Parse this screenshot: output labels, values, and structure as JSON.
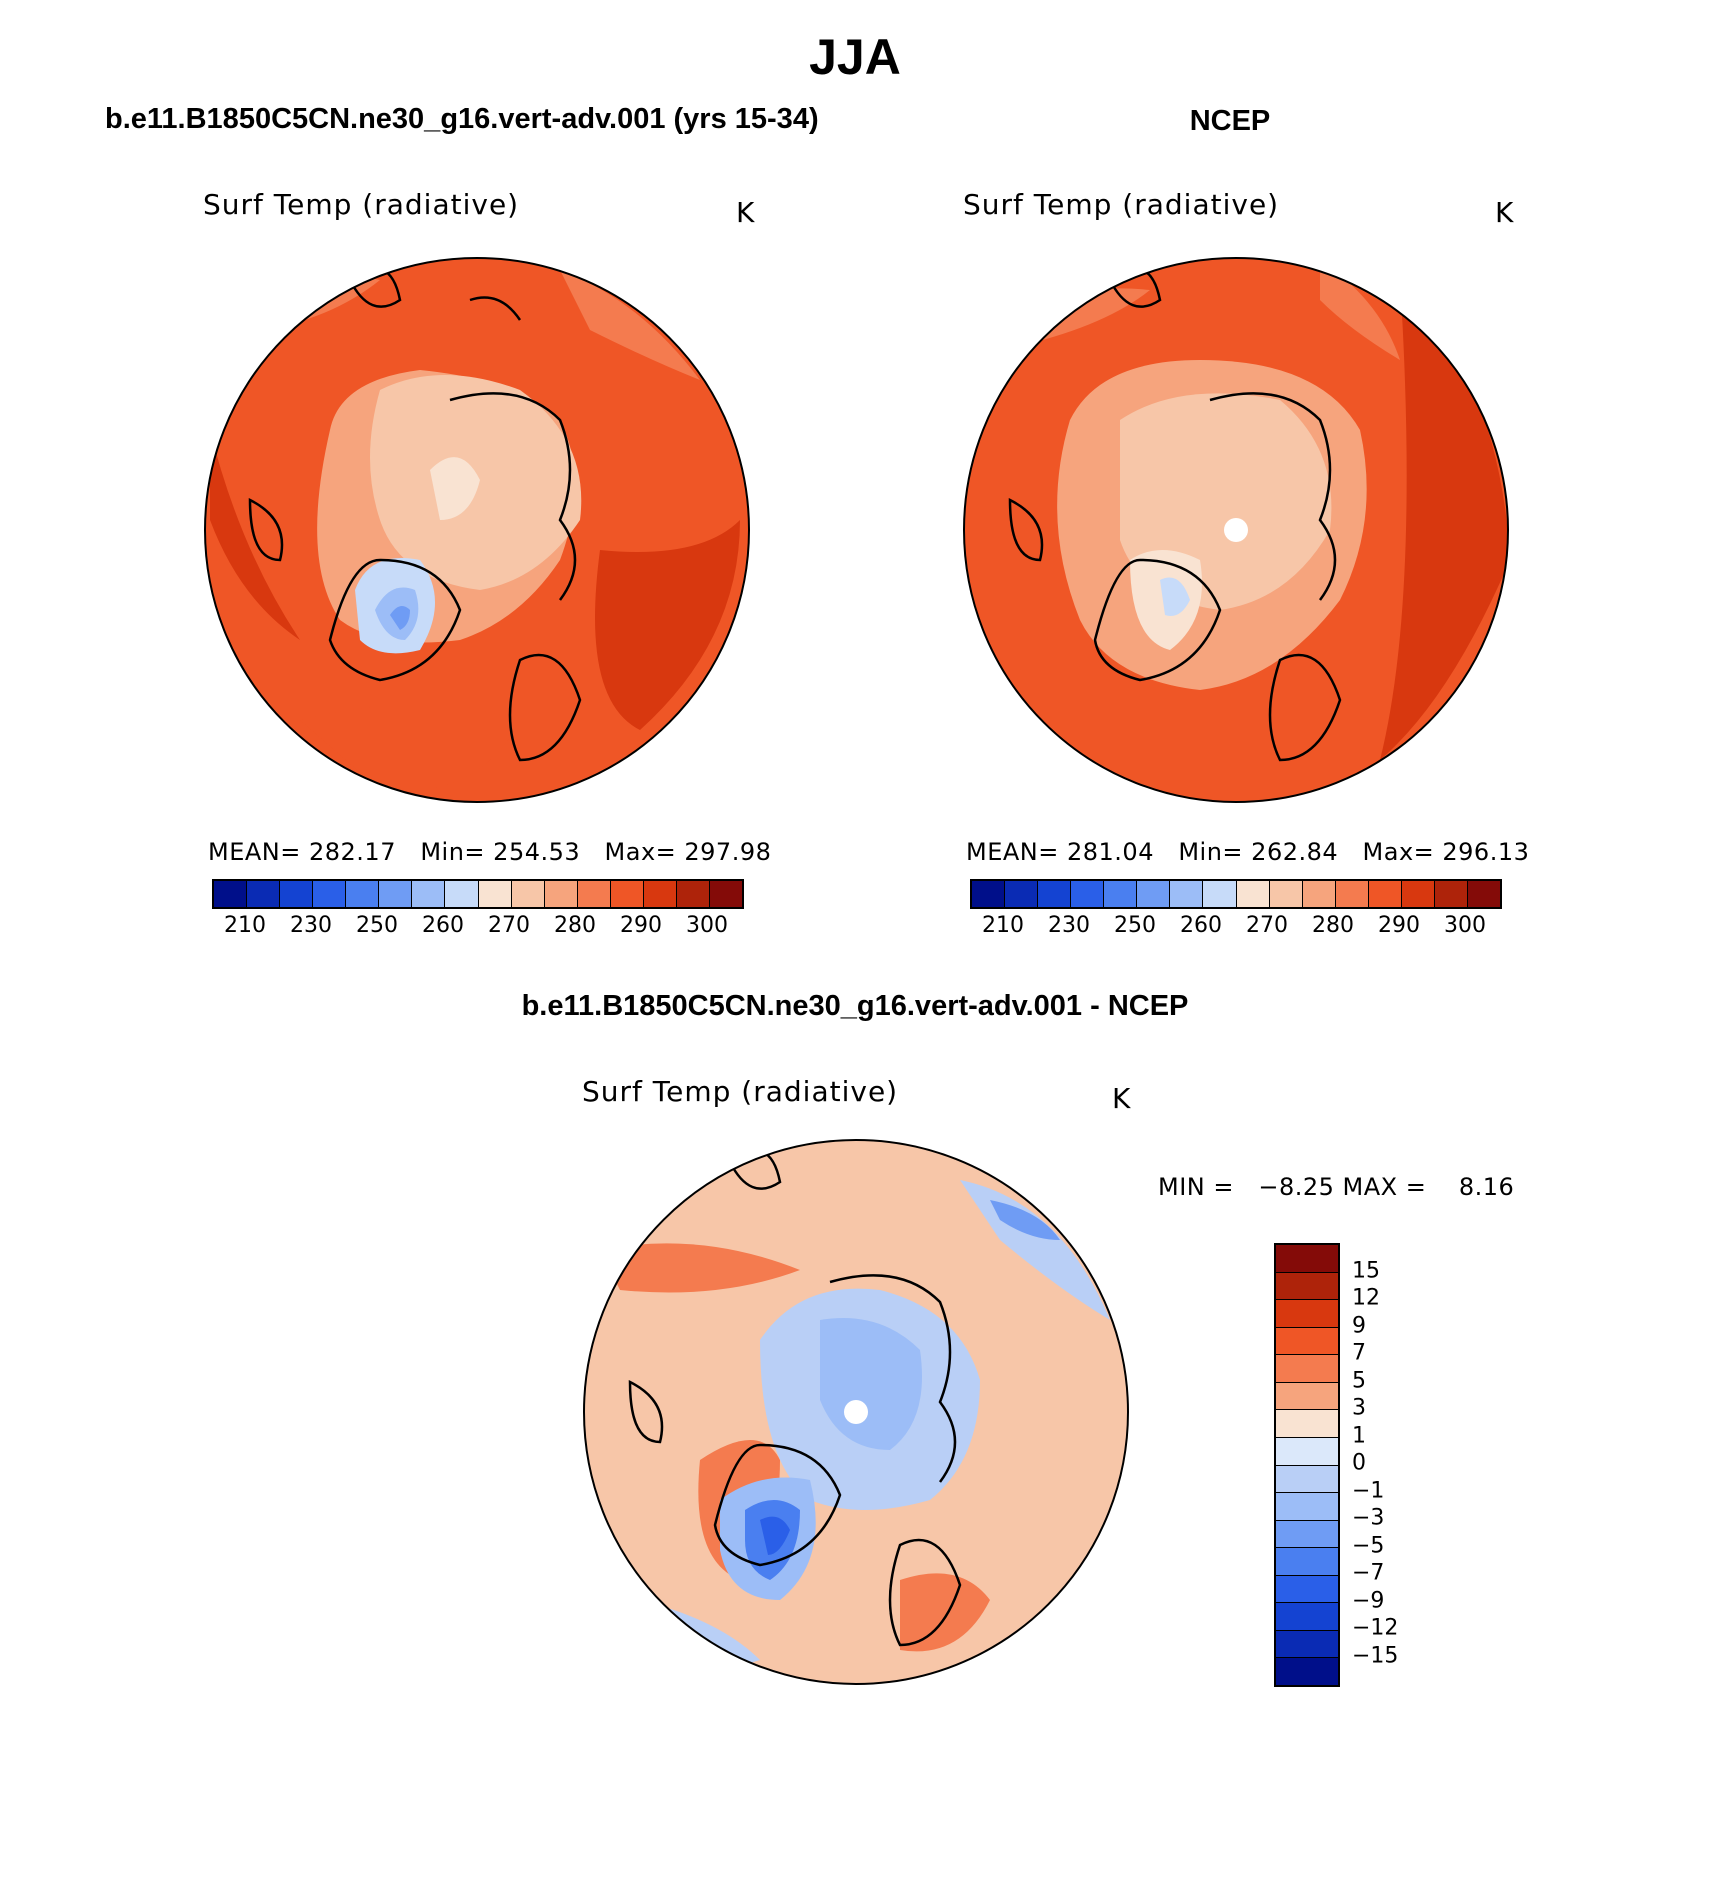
{
  "main_title": "JJA",
  "panels": {
    "model": {
      "title": "b.e11.B1850C5CN.ne30_g16.vert-adv.001 (yrs 15-34)",
      "variable": "Surf Temp (radiative)",
      "units": "K",
      "stats_text": "MEAN= 282.17   Min= 254.53   Max= 297.98"
    },
    "obs": {
      "title": "NCEP",
      "variable": "Surf Temp (radiative)",
      "units": "K",
      "stats_text": "MEAN= 281.04   Min= 262.84   Max= 296.13"
    },
    "diff": {
      "title": "b.e11.B1850C5CN.ne30_g16.vert-adv.001 - NCEP",
      "variable": "Surf Temp (radiative)",
      "units": "K",
      "minmax_text": "MIN =   −8.25 MAX =    8.16"
    }
  },
  "colorbar_abs": {
    "colors": [
      "#000f8a",
      "#0a2bb4",
      "#1443d2",
      "#2a5fe8",
      "#4a7ff0",
      "#6f9cf4",
      "#9cbdf7",
      "#c7dbf9",
      "#f9e3d2",
      "#f7c6a8",
      "#f6a47d",
      "#f47b4f",
      "#ef5626",
      "#d8380f",
      "#ae230a",
      "#840b08"
    ],
    "tick_labels": [
      "210",
      "230",
      "250",
      "260",
      "270",
      "280",
      "290",
      "300"
    ]
  },
  "colorbar_diff": {
    "colors": [
      "#840b08",
      "#ae230a",
      "#d8380f",
      "#ef5626",
      "#f47b4f",
      "#f6a47d",
      "#f9e3d2",
      "#dbe8fa",
      "#b9cff6",
      "#9cbdf7",
      "#6f9cf4",
      "#4a7ff0",
      "#2a5fe8",
      "#1443d2",
      "#0a2bb4",
      "#000f8a"
    ],
    "tick_labels": [
      "15",
      "12",
      "9",
      "7",
      "5",
      "3",
      "1",
      "0",
      "−1",
      "−3",
      "−5",
      "−7",
      "−9",
      "−12",
      "−15"
    ]
  },
  "chart_data": [
    {
      "type": "heatmap",
      "title": "b.e11.B1850C5CN.ne30_g16.vert-adv.001 (yrs 15-34)",
      "variable": "Surf Temp (radiative)",
      "units": "K",
      "projection": "north polar stereographic",
      "mean": 282.17,
      "min": 254.53,
      "max": 297.98,
      "contour_levels": [
        210,
        220,
        230,
        240,
        250,
        255,
        260,
        265,
        270,
        275,
        280,
        285,
        290,
        295,
        300
      ]
    },
    {
      "type": "heatmap",
      "title": "NCEP",
      "variable": "Surf Temp (radiative)",
      "units": "K",
      "projection": "north polar stereographic",
      "mean": 281.04,
      "min": 262.84,
      "max": 296.13,
      "contour_levels": [
        210,
        220,
        230,
        240,
        250,
        255,
        260,
        265,
        270,
        275,
        280,
        285,
        290,
        295,
        300
      ]
    },
    {
      "type": "heatmap",
      "title": "b.e11.B1850C5CN.ne30_g16.vert-adv.001 - NCEP",
      "variable": "Surf Temp (radiative)",
      "units": "K",
      "projection": "north polar stereographic",
      "min": -8.25,
      "max": 8.16,
      "contour_levels": [
        -15,
        -12,
        -9,
        -7,
        -5,
        -3,
        -1,
        0,
        1,
        3,
        5,
        7,
        9,
        12,
        15
      ]
    }
  ]
}
